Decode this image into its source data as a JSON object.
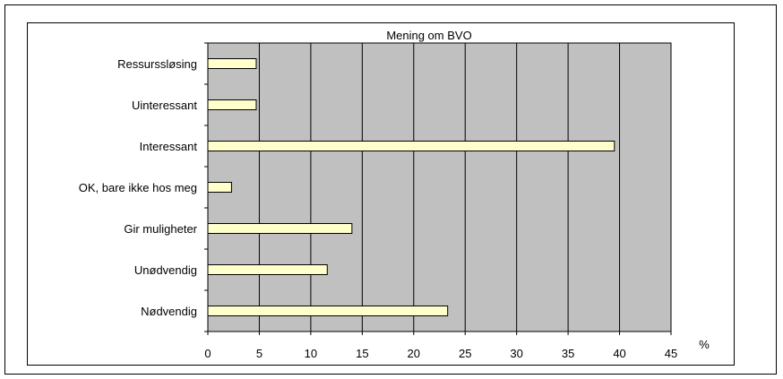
{
  "chart_data": {
    "type": "bar",
    "orientation": "horizontal",
    "title": "Mening om BVO",
    "xlabel": "%",
    "ylabel": "",
    "categories": [
      "Ressurssløsing",
      "Uinteressant",
      "Interessant",
      "OK, bare ikke hos meg",
      "Gir muligheter",
      "Unødvendig",
      "Nødvendig"
    ],
    "values": [
      4.7,
      4.7,
      39.5,
      2.3,
      14.0,
      11.6,
      23.3
    ],
    "xlim": [
      0,
      45
    ],
    "xticks": [
      "0",
      "5",
      "10",
      "15",
      "20",
      "25",
      "30",
      "35",
      "40",
      "45"
    ],
    "grid": true,
    "legend": "none",
    "colors": {
      "plot_background": "#c0c0c0",
      "bar_fill": "#ffffcc",
      "bar_stroke": "#000000",
      "gridline": "#000000"
    }
  }
}
